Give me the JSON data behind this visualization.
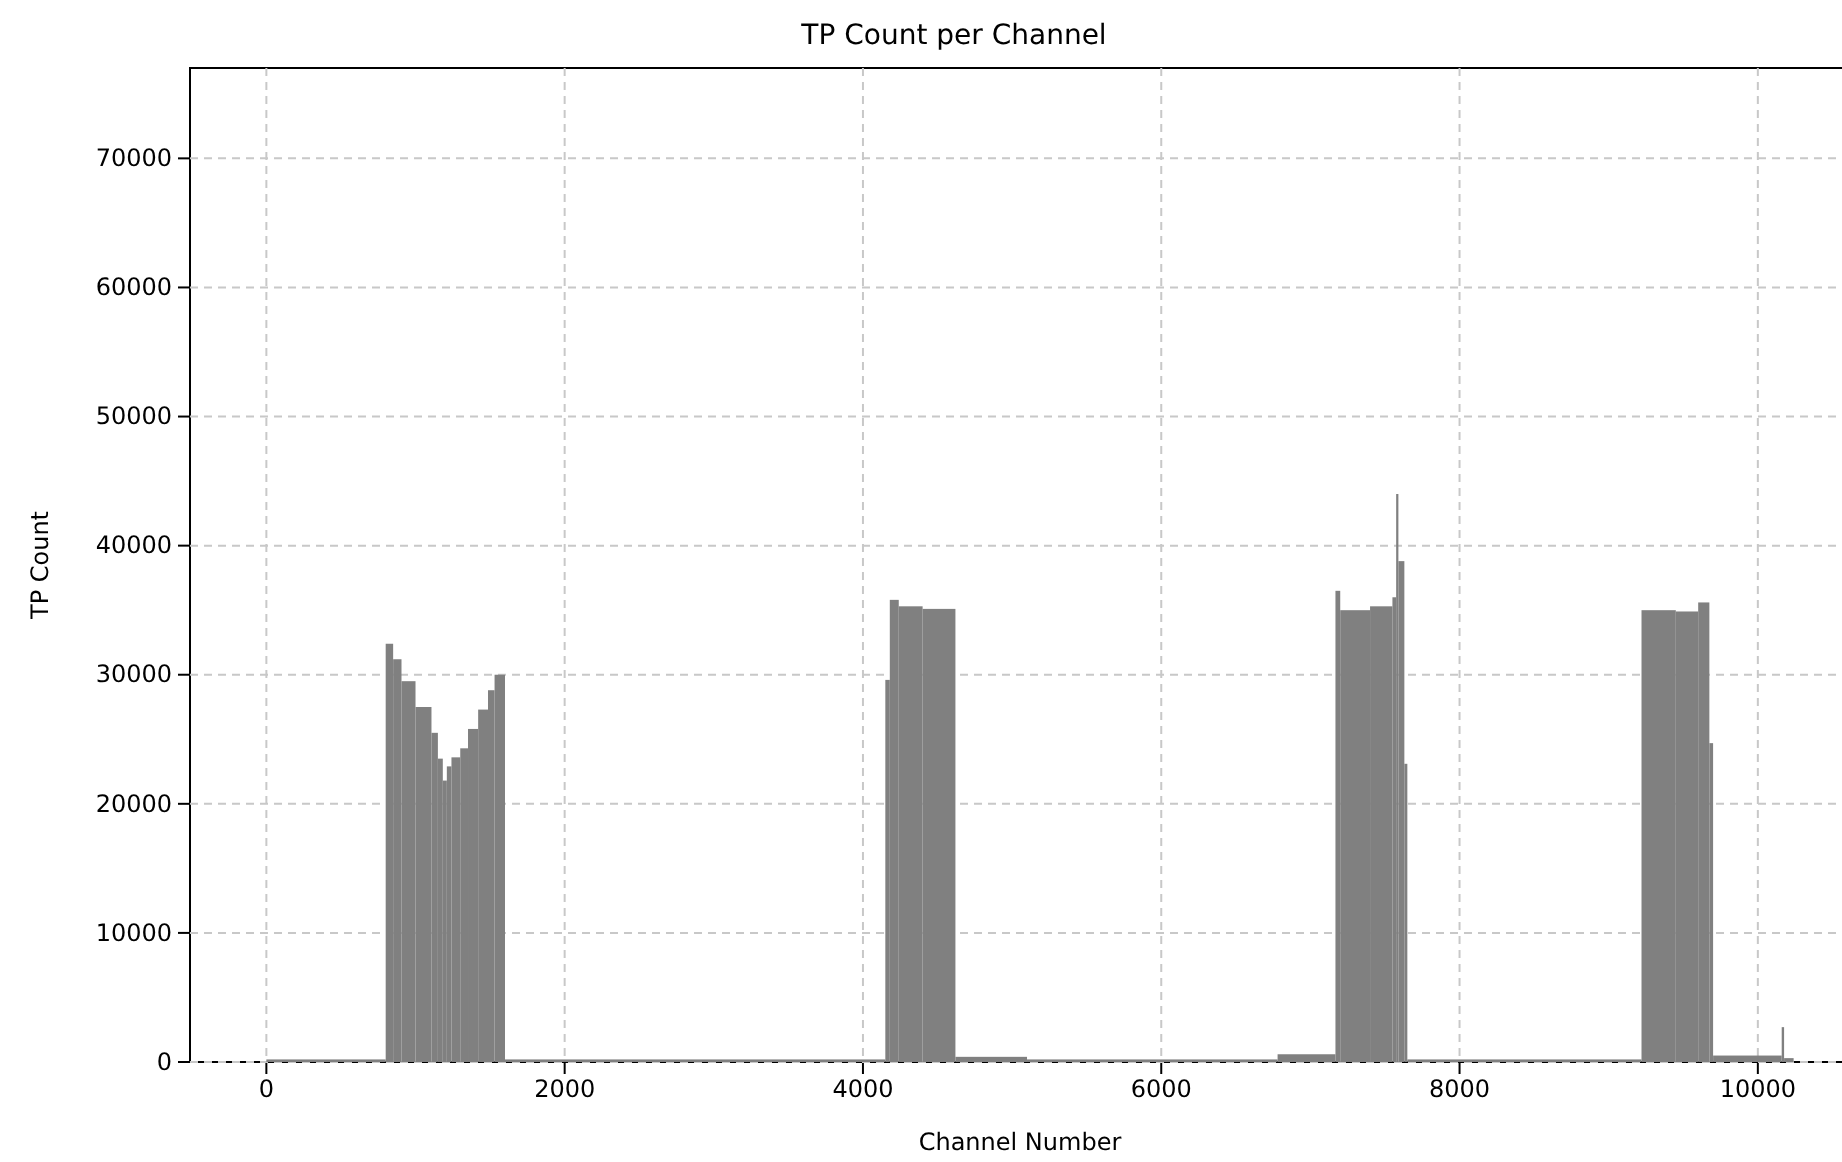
{
  "chart_data": {
    "type": "histogram",
    "title": "TP Count per Channel",
    "xlabel": "Channel Number",
    "ylabel": "TP Count",
    "color": "#808080",
    "bins": [
      0,
      800,
      850,
      906,
      1000,
      1107,
      1150,
      1183,
      1210,
      1241,
      1300,
      1352,
      1420,
      1486,
      1530,
      1600,
      4150,
      4180,
      4240,
      4400,
      4620,
      5100,
      6780,
      7168,
      7200,
      7400,
      7550,
      7575,
      7590,
      7630,
      7650,
      9220,
      9450,
      9600,
      9675,
      9700,
      10160,
      10176,
      10240
    ],
    "values": [
      200,
      32400,
      31200,
      29500,
      27500,
      25500,
      23500,
      21800,
      22900,
      23600,
      24300,
      25800,
      27300,
      28800,
      30000,
      200,
      29600,
      35800,
      35300,
      35100,
      400,
      200,
      600,
      36500,
      35000,
      35300,
      36000,
      44000,
      38800,
      23100,
      200,
      35000,
      34900,
      35600,
      24700,
      500,
      2700,
      300
    ],
    "xlim": [
      -512,
      10752
    ],
    "xticks": [
      0,
      2000,
      4000,
      6000,
      8000,
      10000
    ],
    "ylim": [
      0,
      77000
    ],
    "yticks": [
      0,
      10000,
      20000,
      30000,
      40000,
      50000,
      60000,
      70000
    ],
    "grid": true
  }
}
